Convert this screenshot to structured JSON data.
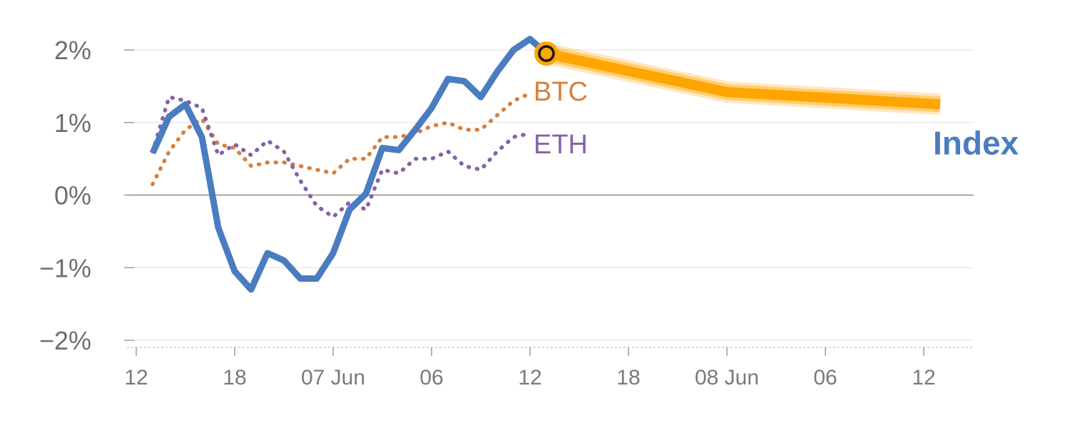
{
  "chart_data": {
    "type": "line",
    "title": "",
    "xlabel": "",
    "ylabel": "",
    "ylim": [
      -2,
      2
    ],
    "y_ticks": [
      {
        "value": 2,
        "label": "2%"
      },
      {
        "value": 1,
        "label": "1%"
      },
      {
        "value": 0,
        "label": "0%"
      },
      {
        "value": -1,
        "label": "−1%"
      },
      {
        "value": -2,
        "label": "−2%"
      }
    ],
    "x_index_range": [
      0,
      52
    ],
    "x_ticks": [
      {
        "index": 0,
        "label": "12"
      },
      {
        "index": 6,
        "label": "18"
      },
      {
        "index": 12,
        "label": "07 Jun"
      },
      {
        "index": 18,
        "label": "06"
      },
      {
        "index": 24,
        "label": "12"
      },
      {
        "index": 30,
        "label": "18"
      },
      {
        "index": 36,
        "label": "08 Jun"
      },
      {
        "index": 42,
        "label": "06"
      },
      {
        "index": 48,
        "label": "12"
      }
    ],
    "grid": true,
    "series": [
      {
        "name": "Index",
        "style": "solid",
        "color": "#4a7cc0",
        "x": [
          1,
          2,
          3,
          4,
          5,
          6,
          7,
          8,
          9,
          10,
          11,
          12,
          13,
          14,
          15,
          16,
          17,
          18,
          19,
          20,
          21,
          22,
          23,
          24,
          25
        ],
        "values": [
          0.58,
          1.08,
          1.25,
          0.8,
          -0.45,
          -1.05,
          -1.3,
          -0.8,
          -0.9,
          -1.15,
          -1.15,
          -0.8,
          -0.2,
          0.02,
          0.65,
          0.62,
          0.9,
          1.2,
          1.6,
          1.57,
          1.35,
          1.7,
          2.0,
          2.15,
          1.95
        ]
      },
      {
        "name": "BTC",
        "style": "dotted",
        "color": "#d97f3a",
        "x": [
          1,
          2,
          3,
          4,
          5,
          6,
          7,
          8,
          9,
          10,
          11,
          12,
          13,
          14,
          15,
          16,
          17,
          18,
          19,
          20,
          21,
          22,
          23,
          24
        ],
        "values": [
          0.15,
          0.6,
          0.9,
          1.05,
          0.7,
          0.65,
          0.4,
          0.45,
          0.45,
          0.4,
          0.35,
          0.3,
          0.5,
          0.5,
          0.8,
          0.8,
          0.85,
          0.95,
          1.0,
          0.9,
          0.9,
          1.1,
          1.3,
          1.4
        ]
      },
      {
        "name": "ETH",
        "style": "dotted",
        "color": "#8462a8",
        "x": [
          1,
          2,
          3,
          4,
          5,
          6,
          7,
          8,
          9,
          10,
          11,
          12,
          13,
          14,
          15,
          16,
          17,
          18,
          19,
          20,
          21,
          22,
          23,
          24
        ],
        "values": [
          0.6,
          1.35,
          1.3,
          1.2,
          0.55,
          0.7,
          0.55,
          0.75,
          0.6,
          0.2,
          -0.15,
          -0.3,
          -0.1,
          -0.2,
          0.35,
          0.3,
          0.5,
          0.5,
          0.6,
          0.4,
          0.35,
          0.6,
          0.8,
          0.85
        ]
      },
      {
        "name": "",
        "style": "forecast",
        "color": "#ffa500",
        "x": [
          25,
          36,
          49
        ],
        "values": [
          1.95,
          1.42,
          1.25
        ]
      }
    ],
    "labels": {
      "btc": "BTC",
      "eth": "ETH",
      "index": "Index"
    }
  }
}
